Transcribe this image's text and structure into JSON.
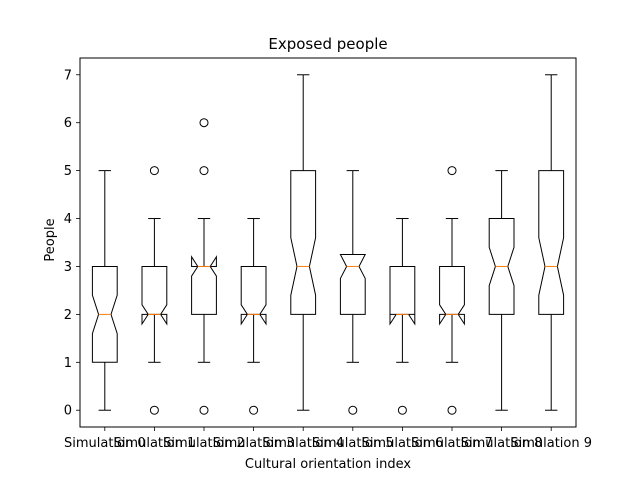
{
  "chart_data": {
    "type": "boxplot",
    "title": "Exposed people",
    "xlabel": "Cultural orientation index",
    "ylabel": "People",
    "ylim": [
      -0.35,
      7.35
    ],
    "yticks": [
      0,
      1,
      2,
      3,
      4,
      5,
      6,
      7
    ],
    "notched": true,
    "colors": {
      "box": "#000000",
      "median": "#ff7f0e",
      "background": "#ffffff"
    },
    "categories": [
      "Simulation 0",
      "Simulation 1",
      "Simulation 2",
      "Simulation 3",
      "Simulation 4",
      "Simulation 5",
      "Simulation 6",
      "Simulation 7",
      "Simulation 8",
      "Simulation 9"
    ],
    "boxes": [
      {
        "label": "Simulation 0",
        "whislo": 0,
        "q1": 1,
        "med": 2,
        "q3": 3,
        "whishi": 5,
        "notch_lo": 1.6,
        "notch_hi": 2.4,
        "fliers": []
      },
      {
        "label": "Simulation 1",
        "whislo": 1,
        "q1": 2,
        "med": 2,
        "q3": 3,
        "whishi": 4,
        "notch_lo": 1.8,
        "notch_hi": 2.2,
        "fliers": [
          0,
          5
        ]
      },
      {
        "label": "Simulation 2",
        "whislo": 1,
        "q1": 2,
        "med": 3,
        "q3": 3,
        "whishi": 4,
        "notch_lo": 2.8,
        "notch_hi": 3.2,
        "fliers": [
          0,
          5,
          6
        ]
      },
      {
        "label": "Simulation 3",
        "whislo": 1,
        "q1": 2,
        "med": 2,
        "q3": 3,
        "whishi": 4,
        "notch_lo": 1.8,
        "notch_hi": 2.2,
        "fliers": [
          0
        ]
      },
      {
        "label": "Simulation 4",
        "whislo": 0,
        "q1": 2,
        "med": 3,
        "q3": 5,
        "whishi": 7,
        "notch_lo": 2.4,
        "notch_hi": 3.6,
        "fliers": []
      },
      {
        "label": "Simulation 5",
        "whislo": 1,
        "q1": 2,
        "med": 3,
        "q3": 3.25,
        "whishi": 5,
        "notch_lo": 2.75,
        "notch_hi": 3.25,
        "fliers": [
          0
        ]
      },
      {
        "label": "Simulation 6",
        "whislo": 1,
        "q1": 2,
        "med": 2,
        "q3": 3,
        "whishi": 4,
        "notch_lo": 1.8,
        "notch_hi": 2.0,
        "fliers": [
          0
        ]
      },
      {
        "label": "Simulation 7",
        "whislo": 1,
        "q1": 2,
        "med": 2,
        "q3": 3,
        "whishi": 4,
        "notch_lo": 1.8,
        "notch_hi": 2.2,
        "fliers": [
          0,
          5
        ]
      },
      {
        "label": "Simulation 8",
        "whislo": 0,
        "q1": 2,
        "med": 3,
        "q3": 4,
        "whishi": 5,
        "notch_lo": 2.6,
        "notch_hi": 3.4,
        "fliers": []
      },
      {
        "label": "Simulation 9",
        "whislo": 0,
        "q1": 2,
        "med": 3,
        "q3": 5,
        "whishi": 7,
        "notch_lo": 2.4,
        "notch_hi": 3.6,
        "fliers": []
      }
    ]
  }
}
